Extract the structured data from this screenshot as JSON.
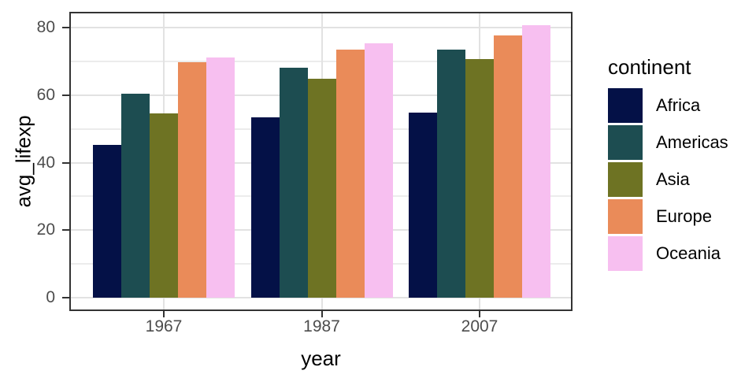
{
  "chart_data": {
    "type": "bar",
    "title": "",
    "xlabel": "year",
    "ylabel": "avg_lifexp",
    "categories": [
      "1967",
      "1987",
      "2007"
    ],
    "series": [
      {
        "name": "Africa",
        "color": "#041147",
        "values": [
          45.33,
          53.34,
          54.81
        ]
      },
      {
        "name": "Americas",
        "color": "#1D4D51",
        "values": [
          60.41,
          68.09,
          73.61
        ]
      },
      {
        "name": "Asia",
        "color": "#6E7323",
        "values": [
          54.66,
          64.85,
          70.73
        ]
      },
      {
        "name": "Europe",
        "color": "#EA8B59",
        "values": [
          69.74,
          73.64,
          77.65
        ]
      },
      {
        "name": "Oceania",
        "color": "#F7BFF0",
        "values": [
          71.31,
          75.32,
          80.72
        ]
      }
    ],
    "y_axis": {
      "ticks": [
        0,
        20,
        40,
        60,
        80
      ],
      "minor_ticks": [
        10,
        30,
        50,
        70
      ],
      "range": [
        -4.04,
        84.76
      ]
    },
    "legend": {
      "title": "continent",
      "position": "right"
    },
    "grid": {
      "horizontal": "major+minor",
      "vertical": "major at category centers"
    },
    "panel_background": "#FFFFFF",
    "panel_border_color": "#333333",
    "gridline_color": "#E2E2E2"
  }
}
